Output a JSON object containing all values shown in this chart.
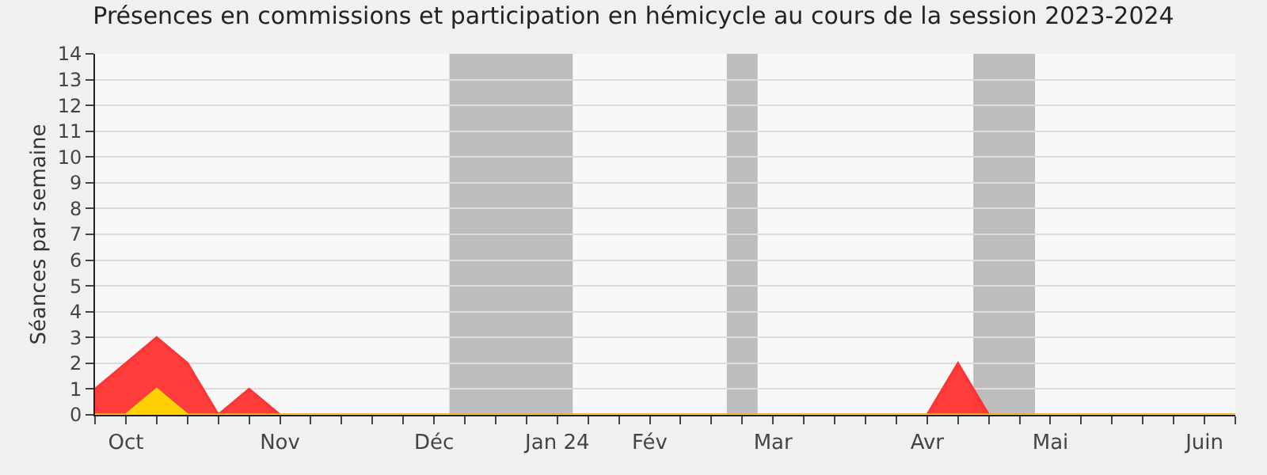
{
  "chart_data": {
    "type": "area",
    "title": "Présences en commissions et participation en hémicycle au cours de la session 2023-2024",
    "ylabel": "Séances par semaine",
    "categories": [
      null,
      "Oct",
      null,
      null,
      null,
      null,
      "Nov",
      null,
      null,
      null,
      null,
      "Déc",
      null,
      null,
      null,
      "Jan 24",
      null,
      null,
      "Fév",
      null,
      null,
      null,
      "Mar",
      null,
      null,
      null,
      null,
      "Avr",
      null,
      null,
      null,
      "Mai",
      null,
      null,
      null,
      null,
      "Juin",
      null
    ],
    "series": [
      {
        "color": "#ff3333",
        "values": [
          1,
          2,
          3,
          2,
          0,
          1,
          0,
          0,
          0,
          0,
          0,
          0,
          0,
          0,
          0,
          0,
          0,
          0,
          0,
          0,
          0,
          0,
          0,
          0,
          0,
          0,
          0,
          0,
          2,
          0,
          0,
          0,
          0,
          0,
          0,
          0,
          0,
          0
        ]
      },
      {
        "color": "#ffd700",
        "values": [
          0,
          0,
          1,
          0,
          0,
          0,
          0,
          0,
          0,
          0,
          0,
          0,
          0,
          0,
          0,
          0,
          0,
          0,
          0,
          0,
          0,
          0,
          0,
          0,
          0,
          0,
          0,
          0,
          0,
          0,
          0,
          0,
          0,
          0,
          0,
          0,
          0,
          0
        ]
      }
    ],
    "ylim": [
      0,
      14
    ],
    "yticks": [
      0,
      1,
      2,
      3,
      4,
      5,
      6,
      7,
      8,
      9,
      10,
      11,
      12,
      13,
      14
    ],
    "grid": "y"
  }
}
